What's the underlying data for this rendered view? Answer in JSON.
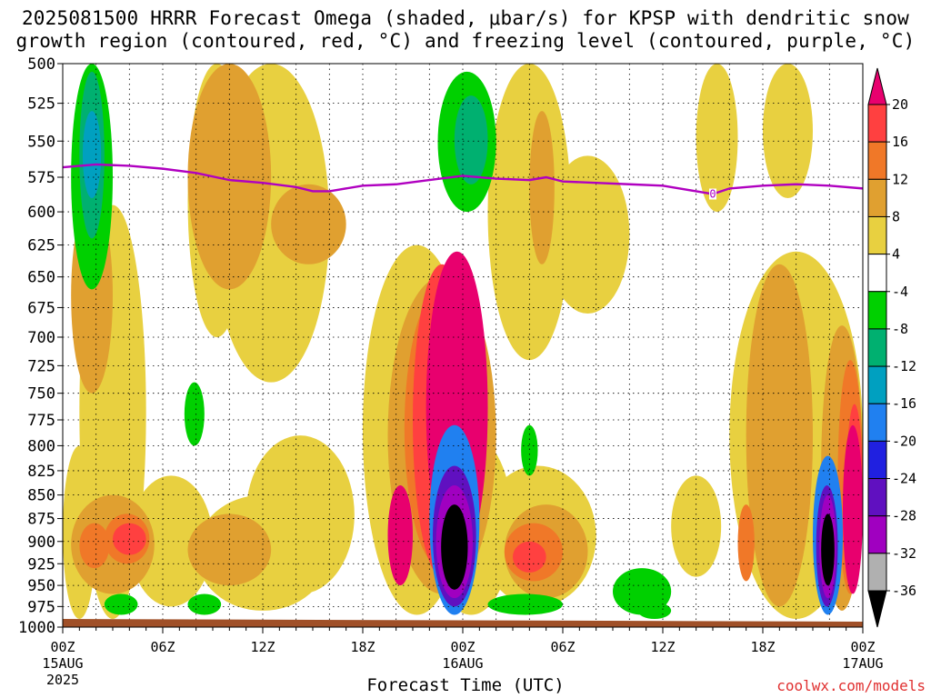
{
  "title": {
    "line1": "2025081500 HRRR Forecast Omega (shaded, μbar/s) for KPSP with dendritic snow",
    "line2": "growth region (contoured, red, °C) and freezing level (contoured, purple, °C)"
  },
  "credit": "coolwx.com/models",
  "chart_data": {
    "type": "heatmap",
    "title": "2025081500 HRRR Forecast Omega (shaded, μbar/s) for KPSP with dendritic snow growth region (contoured, red, °C) and freezing level (contoured, purple, °C)",
    "xlabel": "Forecast Time (UTC)",
    "ylabel": "",
    "x_ticks": [
      {
        "hour": 0,
        "label": "00Z",
        "sub": "15AUG",
        "sub2": "2025"
      },
      {
        "hour": 6,
        "label": "06Z"
      },
      {
        "hour": 12,
        "label": "12Z"
      },
      {
        "hour": 18,
        "label": "18Z"
      },
      {
        "hour": 24,
        "label": "00Z",
        "sub": "16AUG"
      },
      {
        "hour": 30,
        "label": "06Z"
      },
      {
        "hour": 36,
        "label": "12Z"
      },
      {
        "hour": 42,
        "label": "18Z"
      },
      {
        "hour": 48,
        "label": "00Z",
        "sub": "17AUG"
      }
    ],
    "xlim_hours": [
      0,
      48
    ],
    "y_ticks": [
      "500",
      "525",
      "550",
      "575",
      "600",
      "625",
      "650",
      "675",
      "700",
      "725",
      "750",
      "775",
      "800",
      "825",
      "850",
      "875",
      "900",
      "925",
      "950",
      "975",
      "1000"
    ],
    "ylim_hpa": [
      500,
      1000
    ],
    "y_scale": "log-pressure",
    "grid": true,
    "colorbar": {
      "labels": [
        "20",
        "16",
        "12",
        "8",
        "4",
        "-4",
        "-8",
        "-12",
        "-16",
        "-20",
        "-24",
        "-28",
        "-32",
        "-36"
      ],
      "colors": [
        "#e8006e",
        "#ff4040",
        "#f07828",
        "#e0a030",
        "#e8d040",
        "#ffffff",
        "#00d000",
        "#00b070",
        "#00a0c0",
        "#2080f0",
        "#2020e0",
        "#6010c0",
        "#a000c0",
        "#b0b0b0",
        "#000000"
      ]
    },
    "freezing_level": {
      "label": "0",
      "color": "#b000c0",
      "points": [
        [
          0,
          568
        ],
        [
          2,
          566
        ],
        [
          4,
          567
        ],
        [
          6,
          569
        ],
        [
          8,
          572
        ],
        [
          10,
          577
        ],
        [
          12,
          579
        ],
        [
          14,
          582
        ],
        [
          15,
          585
        ],
        [
          16,
          585
        ],
        [
          18,
          581
        ],
        [
          20,
          580
        ],
        [
          22,
          577
        ],
        [
          24,
          574
        ],
        [
          26,
          576
        ],
        [
          28,
          577
        ],
        [
          29,
          575
        ],
        [
          30,
          578
        ],
        [
          32,
          579
        ],
        [
          34,
          580
        ],
        [
          36,
          581
        ],
        [
          38,
          585
        ],
        [
          39,
          587
        ],
        [
          40,
          583
        ],
        [
          42,
          581
        ],
        [
          44,
          580
        ],
        [
          46,
          581
        ],
        [
          48,
          583
        ]
      ]
    },
    "omega_regions": [
      {
        "level": 4,
        "x": [
          1.0,
          5.0
        ],
        "p": [
          595,
          990
        ]
      },
      {
        "level": 4,
        "x": [
          0.0,
          2.0
        ],
        "p": [
          800,
          990
        ]
      },
      {
        "level": 4,
        "x": [
          4.0,
          9.0
        ],
        "p": [
          830,
          975
        ]
      },
      {
        "level": 4,
        "x": [
          7.5,
          11.0
        ],
        "p": [
          500,
          700
        ]
      },
      {
        "level": 4,
        "x": [
          9.0,
          16.0
        ],
        "p": [
          500,
          740
        ]
      },
      {
        "level": 4,
        "x": [
          8.0,
          16.0
        ],
        "p": [
          850,
          980
        ]
      },
      {
        "level": 4,
        "x": [
          11.0,
          17.5
        ],
        "p": [
          790,
          960
        ]
      },
      {
        "level": 4,
        "x": [
          18.0,
          24.5
        ],
        "p": [
          625,
          985
        ]
      },
      {
        "level": 4,
        "x": [
          22.0,
          27.0
        ],
        "p": [
          790,
          985
        ]
      },
      {
        "level": 4,
        "x": [
          25.5,
          30.5
        ],
        "p": [
          500,
          720
        ]
      },
      {
        "level": 4,
        "x": [
          25.0,
          32.0
        ],
        "p": [
          820,
          975
        ]
      },
      {
        "level": 4,
        "x": [
          29.0,
          34.0
        ],
        "p": [
          560,
          680
        ]
      },
      {
        "level": 4,
        "x": [
          38.0,
          40.5
        ],
        "p": [
          500,
          600
        ]
      },
      {
        "level": 4,
        "x": [
          36.5,
          39.5
        ],
        "p": [
          830,
          940
        ]
      },
      {
        "level": 4,
        "x": [
          40.0,
          48.0
        ],
        "p": [
          630,
          990
        ]
      },
      {
        "level": 4,
        "x": [
          42.0,
          45.0
        ],
        "p": [
          500,
          590
        ]
      },
      {
        "level": 8,
        "x": [
          0.5,
          3.0
        ],
        "p": [
          590,
          750
        ]
      },
      {
        "level": 8,
        "x": [
          7.5,
          12.5
        ],
        "p": [
          500,
          660
        ]
      },
      {
        "level": 8,
        "x": [
          12.5,
          17.0
        ],
        "p": [
          580,
          640
        ]
      },
      {
        "level": 8,
        "x": [
          0.5,
          5.5
        ],
        "p": [
          850,
          960
        ]
      },
      {
        "level": 8,
        "x": [
          7.5,
          12.5
        ],
        "p": [
          870,
          950
        ]
      },
      {
        "level": 8,
        "x": [
          19.5,
          26.0
        ],
        "p": [
          650,
          960
        ]
      },
      {
        "level": 8,
        "x": [
          26.5,
          31.5
        ],
        "p": [
          860,
          965
        ]
      },
      {
        "level": 8,
        "x": [
          41.0,
          45.0
        ],
        "p": [
          640,
          975
        ]
      },
      {
        "level": 8,
        "x": [
          45.5,
          48.0
        ],
        "p": [
          690,
          980
        ]
      },
      {
        "level": 8,
        "x": [
          28.0,
          29.5
        ],
        "p": [
          530,
          640
        ]
      },
      {
        "level": 12,
        "x": [
          1.0,
          2.8
        ],
        "p": [
          880,
          930
        ]
      },
      {
        "level": 12,
        "x": [
          2.5,
          5.2
        ],
        "p": [
          870,
          925
        ]
      },
      {
        "level": 12,
        "x": [
          20.5,
          25.0
        ],
        "p": [
          660,
          930
        ]
      },
      {
        "level": 12,
        "x": [
          26.5,
          30.0
        ],
        "p": [
          880,
          945
        ]
      },
      {
        "level": 12,
        "x": [
          40.5,
          41.5
        ],
        "p": [
          860,
          945
        ]
      },
      {
        "level": 12,
        "x": [
          46.5,
          48.0
        ],
        "p": [
          720,
          960
        ]
      },
      {
        "level": 16,
        "x": [
          3.0,
          5.0
        ],
        "p": [
          880,
          915
        ]
      },
      {
        "level": 16,
        "x": [
          27.0,
          29.0
        ],
        "p": [
          900,
          935
        ]
      },
      {
        "level": 16,
        "x": [
          21.0,
          24.5
        ],
        "p": [
          640,
          940
        ]
      },
      {
        "level": 16,
        "x": [
          47.0,
          48.0
        ],
        "p": [
          760,
          940
        ]
      },
      {
        "level": 20,
        "x": [
          21.8,
          25.5
        ],
        "p": [
          630,
          925
        ]
      },
      {
        "level": 20,
        "x": [
          19.5,
          21.0
        ],
        "p": [
          840,
          950
        ]
      },
      {
        "level": 20,
        "x": [
          46.8,
          48.0
        ],
        "p": [
          780,
          960
        ]
      },
      {
        "level": -4,
        "x": [
          0.5,
          3.0
        ],
        "p": [
          500,
          660
        ]
      },
      {
        "level": -4,
        "x": [
          22.5,
          26.0
        ],
        "p": [
          505,
          600
        ]
      },
      {
        "level": -4,
        "x": [
          7.3,
          8.5
        ],
        "p": [
          740,
          800
        ]
      },
      {
        "level": -4,
        "x": [
          2.5,
          4.5
        ],
        "p": [
          960,
          985
        ]
      },
      {
        "level": -4,
        "x": [
          7.5,
          9.5
        ],
        "p": [
          960,
          985
        ]
      },
      {
        "level": -4,
        "x": [
          25.5,
          30.0
        ],
        "p": [
          960,
          985
        ]
      },
      {
        "level": -4,
        "x": [
          33.0,
          36.5
        ],
        "p": [
          930,
          985
        ]
      },
      {
        "level": -4,
        "x": [
          27.5,
          28.5
        ],
        "p": [
          780,
          830
        ]
      },
      {
        "level": -4,
        "x": [
          34.5,
          36.5
        ],
        "p": [
          970,
          990
        ]
      },
      {
        "level": -8,
        "x": [
          1.0,
          2.5
        ],
        "p": [
          505,
          620
        ]
      },
      {
        "level": -8,
        "x": [
          23.5,
          25.5
        ],
        "p": [
          520,
          580
        ]
      },
      {
        "level": -12,
        "x": [
          1.2,
          2.3
        ],
        "p": [
          530,
          590
        ]
      },
      {
        "level": -16,
        "x": [
          22.0,
          25.0
        ],
        "p": [
          780,
          985
        ]
      },
      {
        "level": -16,
        "x": [
          45.0,
          46.8
        ],
        "p": [
          810,
          985
        ]
      },
      {
        "level": -24,
        "x": [
          22.2,
          24.8
        ],
        "p": [
          820,
          975
        ]
      },
      {
        "level": -24,
        "x": [
          45.2,
          46.5
        ],
        "p": [
          840,
          975
        ]
      },
      {
        "level": -28,
        "x": [
          22.4,
          24.6
        ],
        "p": [
          840,
          965
        ]
      },
      {
        "level": -28,
        "x": [
          45.4,
          46.4
        ],
        "p": [
          850,
          965
        ]
      },
      {
        "level": -36,
        "x": [
          22.7,
          24.3
        ],
        "p": [
          860,
          955
        ]
      },
      {
        "level": -36,
        "x": [
          45.5,
          46.3
        ],
        "p": [
          870,
          950
        ]
      }
    ]
  }
}
